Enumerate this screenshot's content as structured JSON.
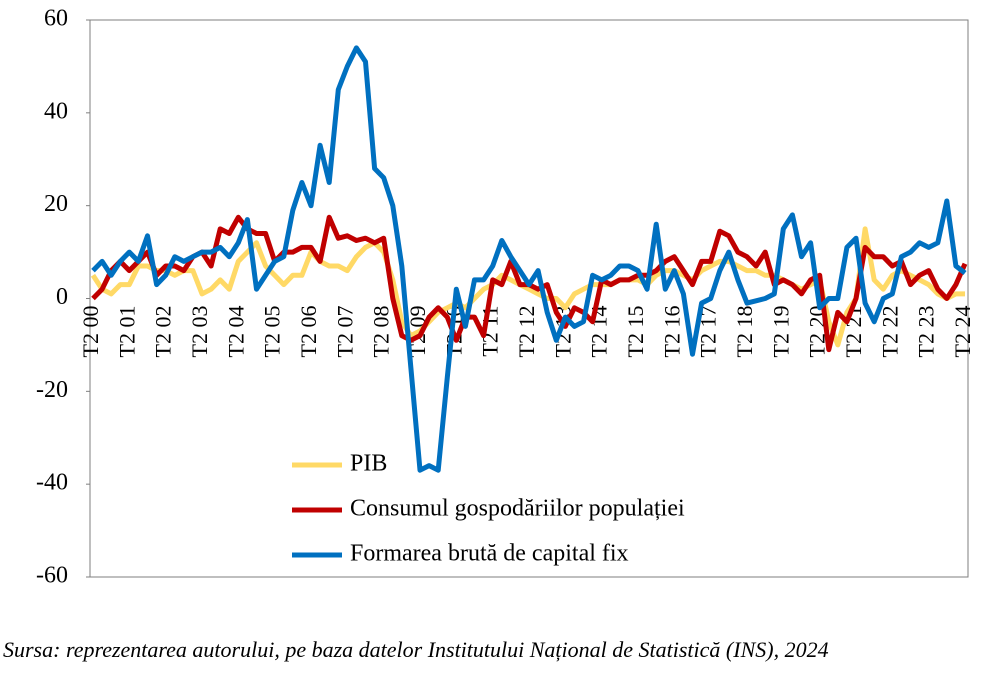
{
  "chart_data": {
    "type": "line",
    "source": "Sursa: reprezentarea autorului, pe baza datelor Institutului Național de Statistică (INS), 2024",
    "categories": [
      "T2 00",
      null,
      null,
      null,
      "T2 01",
      null,
      null,
      null,
      "T2 02",
      null,
      null,
      null,
      "T2 03",
      null,
      null,
      null,
      "T2 04",
      null,
      null,
      null,
      "T2 05",
      null,
      null,
      null,
      "T2 06",
      null,
      null,
      null,
      "T2 07",
      null,
      null,
      null,
      "T2 08",
      null,
      null,
      null,
      "T2 09",
      null,
      null,
      null,
      "T2 10",
      null,
      null,
      null,
      "T2 11",
      null,
      null,
      null,
      "T2 12",
      null,
      null,
      null,
      "T2 13",
      null,
      null,
      null,
      "T2 14",
      null,
      null,
      null,
      "T2 15",
      null,
      null,
      null,
      "T2 16",
      null,
      null,
      null,
      "T2 17",
      null,
      null,
      null,
      "T2 18",
      null,
      null,
      null,
      "T2 19",
      null,
      null,
      null,
      "T2 20",
      null,
      null,
      null,
      "T2 21",
      null,
      null,
      null,
      "T2 22",
      null,
      null,
      null,
      "T2 23",
      null,
      null,
      null,
      "T2 24"
    ],
    "series": [
      {
        "name": "PIB",
        "color": "#ffd966",
        "values": [
          5,
          2,
          1,
          3,
          3,
          7,
          7,
          6,
          6,
          5,
          6,
          6,
          1,
          2,
          4,
          2,
          8,
          10,
          12,
          7,
          5,
          3,
          5,
          5,
          10,
          8,
          7,
          7,
          6,
          9,
          11,
          12,
          10,
          4,
          -5,
          -8,
          -7,
          -5,
          -3,
          -2,
          -1,
          -2,
          0,
          2,
          3,
          5,
          4,
          3,
          2,
          1,
          0,
          0,
          -2,
          1,
          2,
          3,
          3,
          3,
          4,
          4,
          4,
          3,
          5,
          6,
          6,
          5,
          4,
          6,
          7,
          8,
          8,
          7,
          6,
          6,
          5,
          5,
          4,
          3,
          2,
          3,
          4,
          -5,
          -10,
          -3,
          0,
          15,
          4,
          2,
          5,
          6,
          5,
          4,
          3,
          1,
          0,
          1,
          1
        ]
      },
      {
        "name": "Consumul gospodăriilor populației",
        "color": "#c00000",
        "values": [
          0,
          2,
          6,
          8,
          6,
          8,
          10,
          5,
          7,
          7,
          6,
          9,
          10,
          7,
          15,
          14,
          17.5,
          15,
          14,
          14,
          8,
          10,
          10,
          11,
          11,
          8,
          17.5,
          13,
          13.5,
          12.5,
          13,
          12,
          13,
          0,
          -8,
          -9,
          -8,
          -4,
          -2,
          -4,
          -9,
          -4,
          -4,
          -8,
          4,
          3,
          8,
          3,
          3,
          2,
          3,
          -3,
          -6,
          -2,
          -3,
          -5,
          4,
          3,
          4,
          4,
          5,
          5,
          6,
          8,
          9,
          6,
          3,
          8,
          8,
          14.5,
          13.5,
          10,
          9,
          7,
          10,
          3,
          4,
          3,
          1,
          4,
          5,
          -11,
          -3,
          -5,
          0,
          11,
          9,
          9,
          7,
          8,
          3,
          5,
          6,
          2,
          0,
          3,
          7.5
        ]
      },
      {
        "name": "Formarea brută de capital fix",
        "color": "#0070c0",
        "values": [
          6,
          8,
          5,
          8,
          10,
          8,
          13.5,
          3,
          5,
          9,
          8,
          9,
          10,
          10,
          11,
          9,
          12,
          17,
          2,
          5,
          8,
          9,
          19,
          25,
          20,
          33,
          25,
          45,
          50,
          54,
          51,
          28,
          26,
          20,
          7,
          -15,
          -37,
          -36,
          -37,
          -17,
          2,
          -6,
          4,
          4,
          7,
          12.5,
          9,
          6,
          3,
          6,
          -3,
          -9,
          -4,
          -6,
          -5,
          5,
          4,
          5,
          7,
          7,
          6,
          2,
          16,
          2,
          6,
          1,
          -12,
          -1,
          0,
          6,
          10,
          4,
          -1,
          -0.5,
          0,
          1,
          15,
          18,
          9,
          12,
          -2,
          0,
          0,
          11,
          13,
          -1,
          -5,
          0,
          1,
          9,
          10,
          12,
          11,
          12,
          21,
          7,
          5.5
        ]
      }
    ],
    "ylim": [
      -60,
      60
    ],
    "yticks": [
      60,
      40,
      20,
      0,
      -20,
      -40,
      -60
    ],
    "grid": false
  }
}
